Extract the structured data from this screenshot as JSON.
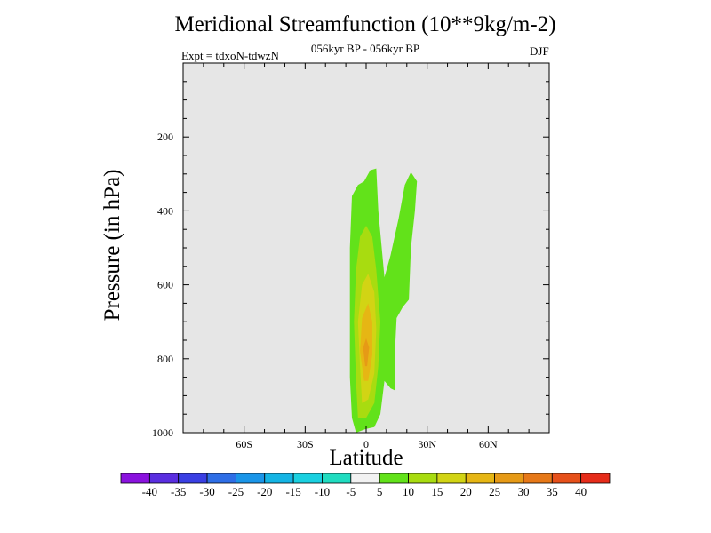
{
  "chart_data": {
    "type": "contour",
    "title": "Meridional Streamfunction (10**9kg/m-2)",
    "subtitle": "056kyr BP - 056kyr BP",
    "experiment": "Expt = tdxoN-tdwzN",
    "season": "DJF",
    "xlabel": "Latitude",
    "ylabel": "Pressure (in hPa)",
    "xlim": [
      -90,
      90
    ],
    "ylim": [
      1000,
      0
    ],
    "x_ticks": [
      -60,
      -30,
      0,
      30,
      60
    ],
    "x_tick_labels": [
      "60S",
      "30S",
      "0",
      "30N",
      "60N"
    ],
    "y_ticks": [
      200,
      400,
      600,
      800,
      1000
    ],
    "y_tick_labels": [
      "200",
      "400",
      "600",
      "800",
      "1000"
    ],
    "background_color": "#e6e6e6",
    "colorbar": {
      "labels": [
        "-40",
        "-35",
        "-30",
        "-25",
        "-20",
        "-15",
        "-10",
        "-5",
        "5",
        "10",
        "15",
        "20",
        "25",
        "30",
        "35",
        "40"
      ],
      "colors": [
        "#8a12de",
        "#5a2ee0",
        "#3a3fe3",
        "#2e6ee6",
        "#1a95e8",
        "#14b4e4",
        "#1ad0e0",
        "#20dcc0",
        "#f2f2f2",
        "#62e21a",
        "#a8dc10",
        "#d2d414",
        "#e6b614",
        "#e69a16",
        "#e67818",
        "#e6501a",
        "#e62c1a"
      ]
    },
    "regions": [
      {
        "level": "5 to 10",
        "color": "#62e21a",
        "points": [
          [
            -5,
            1000
          ],
          [
            -7,
            960
          ],
          [
            -8,
            850
          ],
          [
            -8,
            700
          ],
          [
            -8,
            500
          ],
          [
            -7,
            360
          ],
          [
            -4,
            330
          ],
          [
            -1,
            320
          ],
          [
            2,
            290
          ],
          [
            5,
            285
          ],
          [
            6,
            400
          ],
          [
            8,
            520
          ],
          [
            9,
            580
          ],
          [
            12,
            520
          ],
          [
            16,
            420
          ],
          [
            19,
            330
          ],
          [
            22,
            295
          ],
          [
            25,
            320
          ],
          [
            24,
            400
          ],
          [
            22,
            500
          ],
          [
            21,
            640
          ],
          [
            18,
            660
          ],
          [
            15,
            690
          ],
          [
            14,
            800
          ],
          [
            14,
            860
          ],
          [
            14,
            885
          ],
          [
            12,
            880
          ],
          [
            9,
            860
          ],
          [
            7,
            950
          ],
          [
            4,
            985
          ],
          [
            0,
            990
          ]
        ]
      },
      {
        "level": "10 to 15",
        "color": "#a8dc10",
        "points": [
          [
            -4,
            960
          ],
          [
            -5,
            860
          ],
          [
            -6,
            700
          ],
          [
            -5,
            560
          ],
          [
            -3,
            470
          ],
          [
            0,
            440
          ],
          [
            3,
            470
          ],
          [
            5,
            560
          ],
          [
            7,
            700
          ],
          [
            6,
            820
          ],
          [
            4,
            920
          ],
          [
            0,
            960
          ]
        ]
      },
      {
        "level": "15 to 20",
        "color": "#d2d414",
        "points": [
          [
            -2,
            920
          ],
          [
            -3,
            820
          ],
          [
            -4,
            700
          ],
          [
            -2,
            600
          ],
          [
            1,
            570
          ],
          [
            4,
            620
          ],
          [
            5,
            720
          ],
          [
            4,
            840
          ],
          [
            1,
            910
          ]
        ]
      },
      {
        "level": "20 to 25",
        "color": "#e6b614",
        "points": [
          [
            -1,
            860
          ],
          [
            -3,
            780
          ],
          [
            -2,
            690
          ],
          [
            1,
            650
          ],
          [
            3,
            700
          ],
          [
            3,
            790
          ],
          [
            1,
            860
          ]
        ]
      },
      {
        "level": "25 to 30",
        "color": "#e69a16",
        "points": [
          [
            -0.5,
            820
          ],
          [
            -1.5,
            770
          ],
          [
            0,
            745
          ],
          [
            1.5,
            770
          ],
          [
            0.5,
            820
          ]
        ]
      }
    ]
  }
}
